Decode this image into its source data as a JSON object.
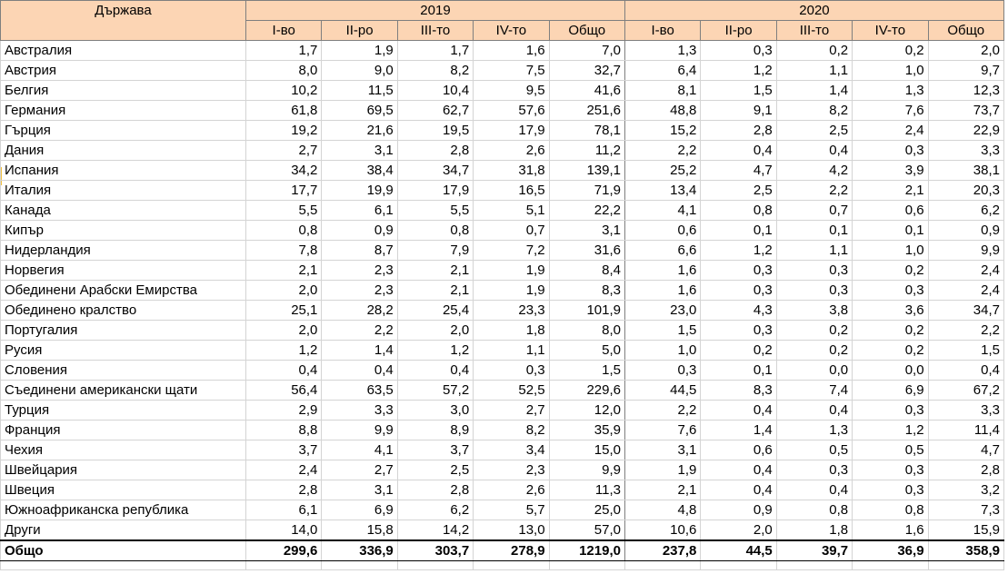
{
  "header": {
    "country_label": "Държава",
    "years": [
      "2019",
      "2020"
    ],
    "quarters": [
      "I-во",
      "II-ро",
      "III-то",
      "IV-то",
      "Общо"
    ]
  },
  "rows": [
    {
      "name": "Австралия",
      "v": [
        "1,7",
        "1,9",
        "1,7",
        "1,6",
        "7,0",
        "1,3",
        "0,3",
        "0,2",
        "0,2",
        "2,0"
      ]
    },
    {
      "name": "Австрия",
      "v": [
        "8,0",
        "9,0",
        "8,2",
        "7,5",
        "32,7",
        "6,4",
        "1,2",
        "1,1",
        "1,0",
        "9,7"
      ]
    },
    {
      "name": "Белгия",
      "v": [
        "10,2",
        "11,5",
        "10,4",
        "9,5",
        "41,6",
        "8,1",
        "1,5",
        "1,4",
        "1,3",
        "12,3"
      ]
    },
    {
      "name": "Германия",
      "v": [
        "61,8",
        "69,5",
        "62,7",
        "57,6",
        "251,6",
        "48,8",
        "9,1",
        "8,2",
        "7,6",
        "73,7"
      ]
    },
    {
      "name": "Гърция",
      "v": [
        "19,2",
        "21,6",
        "19,5",
        "17,9",
        "78,1",
        "15,2",
        "2,8",
        "2,5",
        "2,4",
        "22,9"
      ]
    },
    {
      "name": "Дания",
      "v": [
        "2,7",
        "3,1",
        "2,8",
        "2,6",
        "11,2",
        "2,2",
        "0,4",
        "0,4",
        "0,3",
        "3,3"
      ]
    },
    {
      "name": "Испания",
      "v": [
        "34,2",
        "38,4",
        "34,7",
        "31,8",
        "139,1",
        "25,2",
        "4,7",
        "4,2",
        "3,9",
        "38,1"
      ]
    },
    {
      "name": "Италия",
      "v": [
        "17,7",
        "19,9",
        "17,9",
        "16,5",
        "71,9",
        "13,4",
        "2,5",
        "2,2",
        "2,1",
        "20,3"
      ]
    },
    {
      "name": "Канада",
      "v": [
        "5,5",
        "6,1",
        "5,5",
        "5,1",
        "22,2",
        "4,1",
        "0,8",
        "0,7",
        "0,6",
        "6,2"
      ]
    },
    {
      "name": "Кипър",
      "v": [
        "0,8",
        "0,9",
        "0,8",
        "0,7",
        "3,1",
        "0,6",
        "0,1",
        "0,1",
        "0,1",
        "0,9"
      ]
    },
    {
      "name": "Нидерландия",
      "v": [
        "7,8",
        "8,7",
        "7,9",
        "7,2",
        "31,6",
        "6,6",
        "1,2",
        "1,1",
        "1,0",
        "9,9"
      ]
    },
    {
      "name": "Норвегия",
      "v": [
        "2,1",
        "2,3",
        "2,1",
        "1,9",
        "8,4",
        "1,6",
        "0,3",
        "0,3",
        "0,2",
        "2,4"
      ]
    },
    {
      "name": "Обединени Арабски Емирства",
      "v": [
        "2,0",
        "2,3",
        "2,1",
        "1,9",
        "8,3",
        "1,6",
        "0,3",
        "0,3",
        "0,3",
        "2,4"
      ]
    },
    {
      "name": "Обединено кралство",
      "v": [
        "25,1",
        "28,2",
        "25,4",
        "23,3",
        "101,9",
        "23,0",
        "4,3",
        "3,8",
        "3,6",
        "34,7"
      ]
    },
    {
      "name": "Португалия",
      "v": [
        "2,0",
        "2,2",
        "2,0",
        "1,8",
        "8,0",
        "1,5",
        "0,3",
        "0,2",
        "0,2",
        "2,2"
      ]
    },
    {
      "name": "Русия",
      "v": [
        "1,2",
        "1,4",
        "1,2",
        "1,1",
        "5,0",
        "1,0",
        "0,2",
        "0,2",
        "0,2",
        "1,5"
      ]
    },
    {
      "name": "Словения",
      "v": [
        "0,4",
        "0,4",
        "0,4",
        "0,3",
        "1,5",
        "0,3",
        "0,1",
        "0,0",
        "0,0",
        "0,4"
      ]
    },
    {
      "name": "Съединени американски щати",
      "v": [
        "56,4",
        "63,5",
        "57,2",
        "52,5",
        "229,6",
        "44,5",
        "8,3",
        "7,4",
        "6,9",
        "67,2"
      ]
    },
    {
      "name": "Турция",
      "v": [
        "2,9",
        "3,3",
        "3,0",
        "2,7",
        "12,0",
        "2,2",
        "0,4",
        "0,4",
        "0,3",
        "3,3"
      ]
    },
    {
      "name": "Франция",
      "v": [
        "8,8",
        "9,9",
        "8,9",
        "8,2",
        "35,9",
        "7,6",
        "1,4",
        "1,3",
        "1,2",
        "11,4"
      ]
    },
    {
      "name": "Чехия",
      "v": [
        "3,7",
        "4,1",
        "3,7",
        "3,4",
        "15,0",
        "3,1",
        "0,6",
        "0,5",
        "0,5",
        "4,7"
      ]
    },
    {
      "name": "Швейцария",
      "v": [
        "2,4",
        "2,7",
        "2,5",
        "2,3",
        "9,9",
        "1,9",
        "0,4",
        "0,3",
        "0,3",
        "2,8"
      ]
    },
    {
      "name": "Швеция",
      "v": [
        "2,8",
        "3,1",
        "2,8",
        "2,6",
        "11,3",
        "2,1",
        "0,4",
        "0,4",
        "0,3",
        "3,2"
      ]
    },
    {
      "name": "Южноафриканска република",
      "v": [
        "6,1",
        "6,9",
        "6,2",
        "5,7",
        "25,0",
        "4,8",
        "0,9",
        "0,8",
        "0,8",
        "7,3"
      ]
    },
    {
      "name": "Други",
      "v": [
        "14,0",
        "15,8",
        "14,2",
        "13,0",
        "57,0",
        "10,6",
        "2,0",
        "1,8",
        "1,6",
        "15,9"
      ]
    }
  ],
  "total": {
    "name": "Общо",
    "v": [
      "299,6",
      "336,9",
      "303,7",
      "278,9",
      "1219,0",
      "237,8",
      "44,5",
      "39,7",
      "36,9",
      "358,9"
    ]
  }
}
